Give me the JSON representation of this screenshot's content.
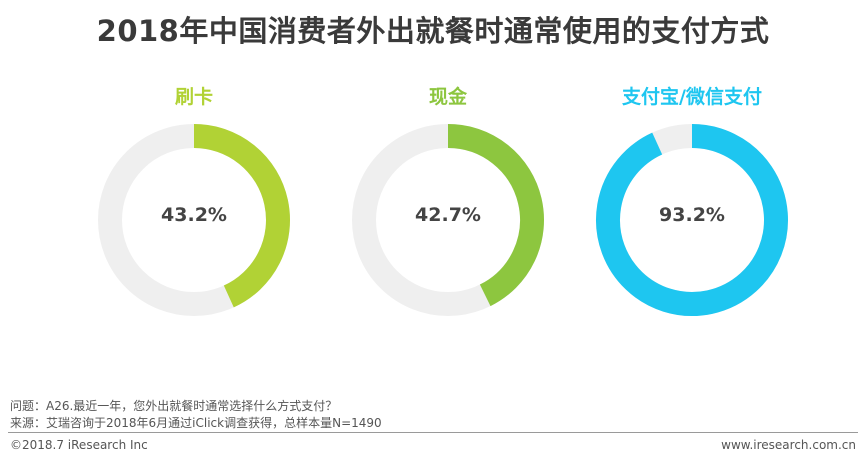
{
  "title": "2018年中国消费者外出就餐时通常使用的支付方式",
  "chart_data": {
    "type": "pie",
    "charts": [
      {
        "label": "刷卡",
        "value": 43.2,
        "value_label": "43.2%",
        "color": "#b1d235"
      },
      {
        "label": "现金",
        "value": 42.7,
        "value_label": "42.7%",
        "color": "#8dc63f"
      },
      {
        "label": "支付宝/微信支付",
        "value": 93.2,
        "value_label": "93.2%",
        "color": "#1ec6f0"
      }
    ],
    "track_color": "#efefef"
  },
  "footnote": {
    "question": "问题：A26.最近一年，您外出就餐时通常选择什么方式支付？",
    "source": "来源：艾瑞咨询于2018年6月通过iClick调查获得，总样本量N=1490"
  },
  "footer": {
    "copyright": "©2018.7 iResearch  Inc",
    "website": "www.iresearch.com.cn"
  }
}
